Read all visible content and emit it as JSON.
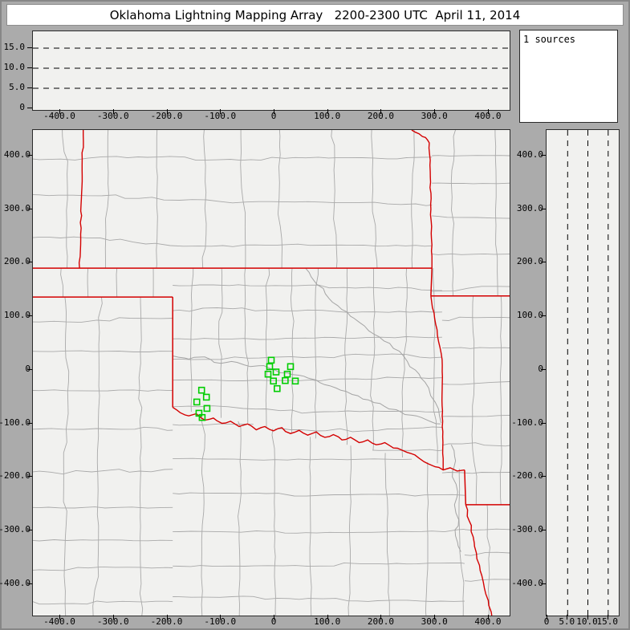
{
  "title": "Oklahoma Lightning Mapping Array   2200-2300 UTC  April 11, 2014",
  "sources_panel": {
    "count_label": "1 sources"
  },
  "colors": {
    "background": "#ababab",
    "panel_bg": "#f1f1ef",
    "white_panel": "#ffffff",
    "axis": "#000000",
    "county_line": "#a9a9a9",
    "river_line": "#a4a4a4",
    "state_line": "#d40000",
    "marker_green": "#00cd00"
  },
  "chart_data": {
    "type": "scatter",
    "title": "Oklahoma Lightning Mapping Array   2200-2300 UTC  April 11, 2014",
    "legend": "1 sources",
    "panels": {
      "map": {
        "x_range": [
          -451,
          439
        ],
        "y_range": [
          -459,
          448
        ],
        "units": "km",
        "x_ticks": [
          {
            "v": -400,
            "label": "-400.0"
          },
          {
            "v": -300,
            "label": "-300.0"
          },
          {
            "v": -200,
            "label": "-200.0"
          },
          {
            "v": -100,
            "label": "-100.0"
          },
          {
            "v": 0,
            "label": "0"
          },
          {
            "v": 100,
            "label": "100.0"
          },
          {
            "v": 200,
            "label": "200.0"
          },
          {
            "v": 300,
            "label": "300.0"
          },
          {
            "v": 400,
            "label": "400.0"
          }
        ],
        "y_ticks": [
          {
            "v": 400,
            "label": "400.0"
          },
          {
            "v": 300,
            "label": "300.0"
          },
          {
            "v": 200,
            "label": "200.0"
          },
          {
            "v": 100,
            "label": "100.0"
          },
          {
            "v": 0,
            "label": "0"
          },
          {
            "v": -100,
            "label": "-100.0"
          },
          {
            "v": -200,
            "label": "-200.0"
          },
          {
            "v": -300,
            "label": "-300.0"
          },
          {
            "v": -400,
            "label": "-400.0"
          }
        ]
      },
      "ew_altitude": {
        "alt_range": [
          0,
          19.2
        ],
        "gridlines_km": [
          5,
          10,
          15
        ],
        "alt_ticks": [
          {
            "v": 0,
            "label": "0"
          },
          {
            "v": 5,
            "label": "5.0"
          },
          {
            "v": 10,
            "label": "10.0"
          },
          {
            "v": 15,
            "label": "15.0"
          }
        ]
      },
      "ns_altitude": {
        "alt_range": [
          0,
          17.8
        ],
        "gridlines_km": [
          5,
          10,
          15
        ],
        "alt_ticks": [
          {
            "v": 0,
            "label": "0"
          },
          {
            "v": 5,
            "label": "5.0"
          },
          {
            "v": 10,
            "label": "10.0"
          },
          {
            "v": 15,
            "label": "15.0"
          }
        ]
      }
    },
    "sources": {
      "count_label": "1 sources",
      "marker_shape": "open-square",
      "marker_color": "#00cd00",
      "marker_size_px": 7,
      "points_km": [
        [
          -6,
          18
        ],
        [
          -9,
          6
        ],
        [
          30,
          6
        ],
        [
          3,
          -4
        ],
        [
          -12,
          -8
        ],
        [
          24,
          -8
        ],
        [
          -2,
          -21
        ],
        [
          20,
          -20
        ],
        [
          39,
          -21
        ],
        [
          5,
          -35
        ],
        [
          -136,
          -38
        ],
        [
          -127,
          -51
        ],
        [
          -145,
          -60
        ],
        [
          -126,
          -72
        ],
        [
          -141,
          -81
        ],
        [
          -135,
          -89
        ]
      ]
    },
    "state_borders_km": [
      {
        "name": "co-ks-border",
        "lw": 1.4,
        "wig": 0.8,
        "pts": [
          [
            -357,
            448
          ],
          [
            -360,
            330
          ],
          [
            -364,
            190
          ]
        ]
      },
      {
        "name": "ks-ok-37n-border",
        "lw": 1.5,
        "wig": 0,
        "pts": [
          [
            -451,
            190
          ],
          [
            294,
            190
          ]
        ]
      },
      {
        "name": "ks-mo-border",
        "lw": 1.4,
        "wig": 0.7,
        "pts": [
          [
            256,
            448
          ],
          [
            263,
            444
          ],
          [
            270,
            441
          ],
          [
            276,
            436
          ],
          [
            282,
            434
          ],
          [
            286,
            429
          ],
          [
            289,
            424
          ],
          [
            291,
            360
          ],
          [
            292,
            300
          ],
          [
            293,
            245
          ],
          [
            294,
            190
          ]
        ]
      },
      {
        "name": "ok-mo-border",
        "lw": 1.5,
        "wig": 0,
        "pts": [
          [
            294,
            190
          ],
          [
            292,
            138
          ]
        ]
      },
      {
        "name": "ar-mo-border",
        "lw": 1.5,
        "wig": 0,
        "pts": [
          [
            292,
            138
          ],
          [
            439,
            138
          ]
        ]
      },
      {
        "name": "ok-ar-border",
        "lw": 1.4,
        "wig": 0.5,
        "pts": [
          [
            292,
            138
          ],
          [
            301,
            85
          ],
          [
            309,
            42
          ],
          [
            313,
            19
          ],
          [
            313,
            -67
          ],
          [
            314,
            -125
          ],
          [
            315,
            -187
          ]
        ]
      },
      {
        "name": "ok-panhandle-south-border",
        "lw": 1.5,
        "wig": 0,
        "pts": [
          [
            -451,
            136
          ],
          [
            -190,
            136
          ]
        ]
      },
      {
        "name": "ok-tx-100w-border",
        "lw": 1.5,
        "wig": 0,
        "pts": [
          [
            -190,
            136
          ],
          [
            -190,
            -70
          ]
        ]
      },
      {
        "name": "red-river-border",
        "lw": 1.4,
        "wig": 1.2,
        "pts": [
          [
            -190,
            -70
          ],
          [
            -176,
            -80
          ],
          [
            -160,
            -86
          ],
          [
            -146,
            -82
          ],
          [
            -130,
            -94
          ],
          [
            -114,
            -90
          ],
          [
            -98,
            -100
          ],
          [
            -82,
            -96
          ],
          [
            -66,
            -106
          ],
          [
            -50,
            -101
          ],
          [
            -34,
            -112
          ],
          [
            -18,
            -106
          ],
          [
            -2,
            -114
          ],
          [
            14,
            -108
          ],
          [
            30,
            -119
          ],
          [
            46,
            -113
          ],
          [
            62,
            -122
          ],
          [
            78,
            -116
          ],
          [
            94,
            -126
          ],
          [
            110,
            -121
          ],
          [
            126,
            -131
          ],
          [
            142,
            -126
          ],
          [
            158,
            -136
          ],
          [
            174,
            -131
          ],
          [
            190,
            -140
          ],
          [
            206,
            -136
          ],
          [
            222,
            -146
          ],
          [
            238,
            -150
          ],
          [
            254,
            -156
          ],
          [
            270,
            -165
          ],
          [
            286,
            -175
          ],
          [
            300,
            -181
          ],
          [
            315,
            -187
          ],
          [
            328,
            -183
          ],
          [
            341,
            -189
          ],
          [
            355,
            -187
          ]
        ]
      },
      {
        "name": "tx-ar-border",
        "lw": 1.5,
        "wig": 0,
        "pts": [
          [
            355,
            -187
          ],
          [
            357,
            -252
          ]
        ]
      },
      {
        "name": "ar-la-33n-border",
        "lw": 1.5,
        "wig": 0,
        "pts": [
          [
            357,
            -252
          ],
          [
            439,
            -252
          ]
        ]
      },
      {
        "name": "tx-la-border",
        "lw": 1.4,
        "wig": 1.5,
        "pts": [
          [
            357,
            -252
          ],
          [
            364,
            -283
          ],
          [
            371,
            -312
          ],
          [
            377,
            -342
          ],
          [
            384,
            -375
          ],
          [
            392,
            -408
          ],
          [
            400,
            -440
          ],
          [
            406,
            -462
          ]
        ]
      }
    ],
    "rivers_km": [
      [
        [
          -190,
          26
        ],
        [
          -160,
          20
        ],
        [
          -130,
          24
        ],
        [
          -100,
          12
        ],
        [
          -70,
          14
        ],
        [
          -45,
          6
        ],
        [
          -20,
          8
        ],
        [
          0,
          0
        ],
        [
          25,
          -6
        ],
        [
          55,
          -12
        ],
        [
          85,
          -24
        ],
        [
          115,
          -34
        ],
        [
          145,
          -46
        ],
        [
          175,
          -56
        ],
        [
          205,
          -68
        ],
        [
          235,
          -78
        ],
        [
          265,
          -86
        ],
        [
          290,
          -96
        ],
        [
          310,
          -101
        ]
      ],
      [
        [
          58,
          190
        ],
        [
          75,
          165
        ],
        [
          95,
          142
        ],
        [
          118,
          120
        ],
        [
          142,
          100
        ],
        [
          168,
          82
        ],
        [
          195,
          62
        ],
        [
          222,
          40
        ],
        [
          248,
          16
        ],
        [
          270,
          -8
        ],
        [
          288,
          -34
        ],
        [
          300,
          -60
        ],
        [
          308,
          -86
        ],
        [
          311,
          -99
        ]
      ],
      [
        [
          330,
          -140
        ],
        [
          338,
          -170
        ],
        [
          332,
          -200
        ],
        [
          342,
          -228
        ],
        [
          336,
          -252
        ],
        [
          344,
          -280
        ],
        [
          338,
          -310
        ],
        [
          348,
          -340
        ]
      ]
    ],
    "county_grid": {
      "cut_line_km": [
        [
          -190,
          -70
        ],
        [
          355,
          -187
        ]
      ],
      "regions": [
        {
          "x": [
            -451,
            294
          ],
          "y": [
            190,
            448
          ],
          "cell": [
            82,
            76
          ]
        },
        {
          "x": [
            294,
            439
          ],
          "y": [
            138,
            448
          ],
          "cell": [
            66,
            62
          ]
        },
        {
          "x": [
            -451,
            -190
          ],
          "y": [
            136,
            190
          ],
          "cell": [
            62,
            56
          ]
        },
        {
          "x": [
            -451,
            -190
          ],
          "y": [
            -459,
            136
          ],
          "cell": [
            74,
            68
          ]
        },
        {
          "x": [
            -190,
            313
          ],
          "y": [
            -200,
            190
          ],
          "cell": [
            52,
            47
          ],
          "cut": "bottom"
        },
        {
          "x": [
            313,
            439
          ],
          "y": [
            -252,
            138
          ],
          "cell": [
            60,
            57
          ]
        },
        {
          "x": [
            -190,
            355
          ],
          "y": [
            -459,
            -60
          ],
          "cell": [
            70,
            66
          ],
          "cut": "top"
        },
        {
          "x": [
            355,
            439
          ],
          "y": [
            -459,
            -252
          ],
          "cell": [
            58,
            58
          ]
        }
      ]
    }
  }
}
